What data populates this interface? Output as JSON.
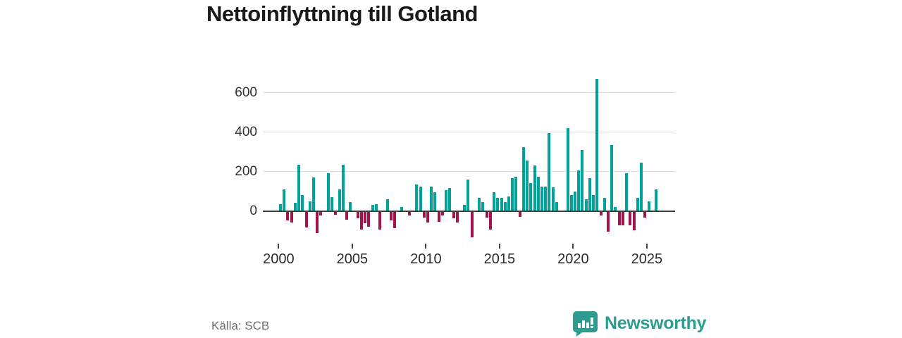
{
  "source": "Källa: SCB",
  "brand": {
    "name": "Newsworthy",
    "logo_icon": "speech-bubble-bar-chart",
    "color": "#2d9b90"
  },
  "chart_data": {
    "type": "bar",
    "title": "Nettoinflyttning till Gotland",
    "xlabel": "",
    "ylabel": "",
    "frequency": "quarterly",
    "start_period": "2000-Q1",
    "positive_color": "#00a29a",
    "negative_color": "#a31248",
    "grid": "horizontal",
    "ylim": [
      -150,
      700
    ],
    "ytick_labels": [
      "0",
      "200",
      "400",
      "600"
    ],
    "xtick_labels": [
      "2000",
      "2005",
      "2010",
      "2015",
      "2020",
      "2025"
    ],
    "values": [
      35,
      110,
      -45,
      -55,
      40,
      235,
      80,
      -80,
      50,
      170,
      -110,
      -20,
      0,
      190,
      70,
      -15,
      110,
      235,
      -40,
      45,
      0,
      -35,
      -90,
      -60,
      -75,
      30,
      35,
      -90,
      0,
      60,
      -45,
      -85,
      0,
      20,
      0,
      -20,
      0,
      135,
      125,
      -30,
      -55,
      125,
      95,
      -50,
      -20,
      105,
      115,
      -35,
      -55,
      0,
      30,
      160,
      -130,
      0,
      65,
      45,
      -30,
      -90,
      95,
      65,
      65,
      45,
      75,
      165,
      175,
      -25,
      325,
      255,
      140,
      230,
      175,
      125,
      125,
      395,
      120,
      45,
      0,
      0,
      420,
      80,
      100,
      205,
      310,
      60,
      165,
      80,
      670,
      -20,
      65,
      -100,
      335,
      20,
      -70,
      -70,
      190,
      -70,
      -95,
      65,
      245,
      -30,
      50,
      0,
      110
    ]
  }
}
